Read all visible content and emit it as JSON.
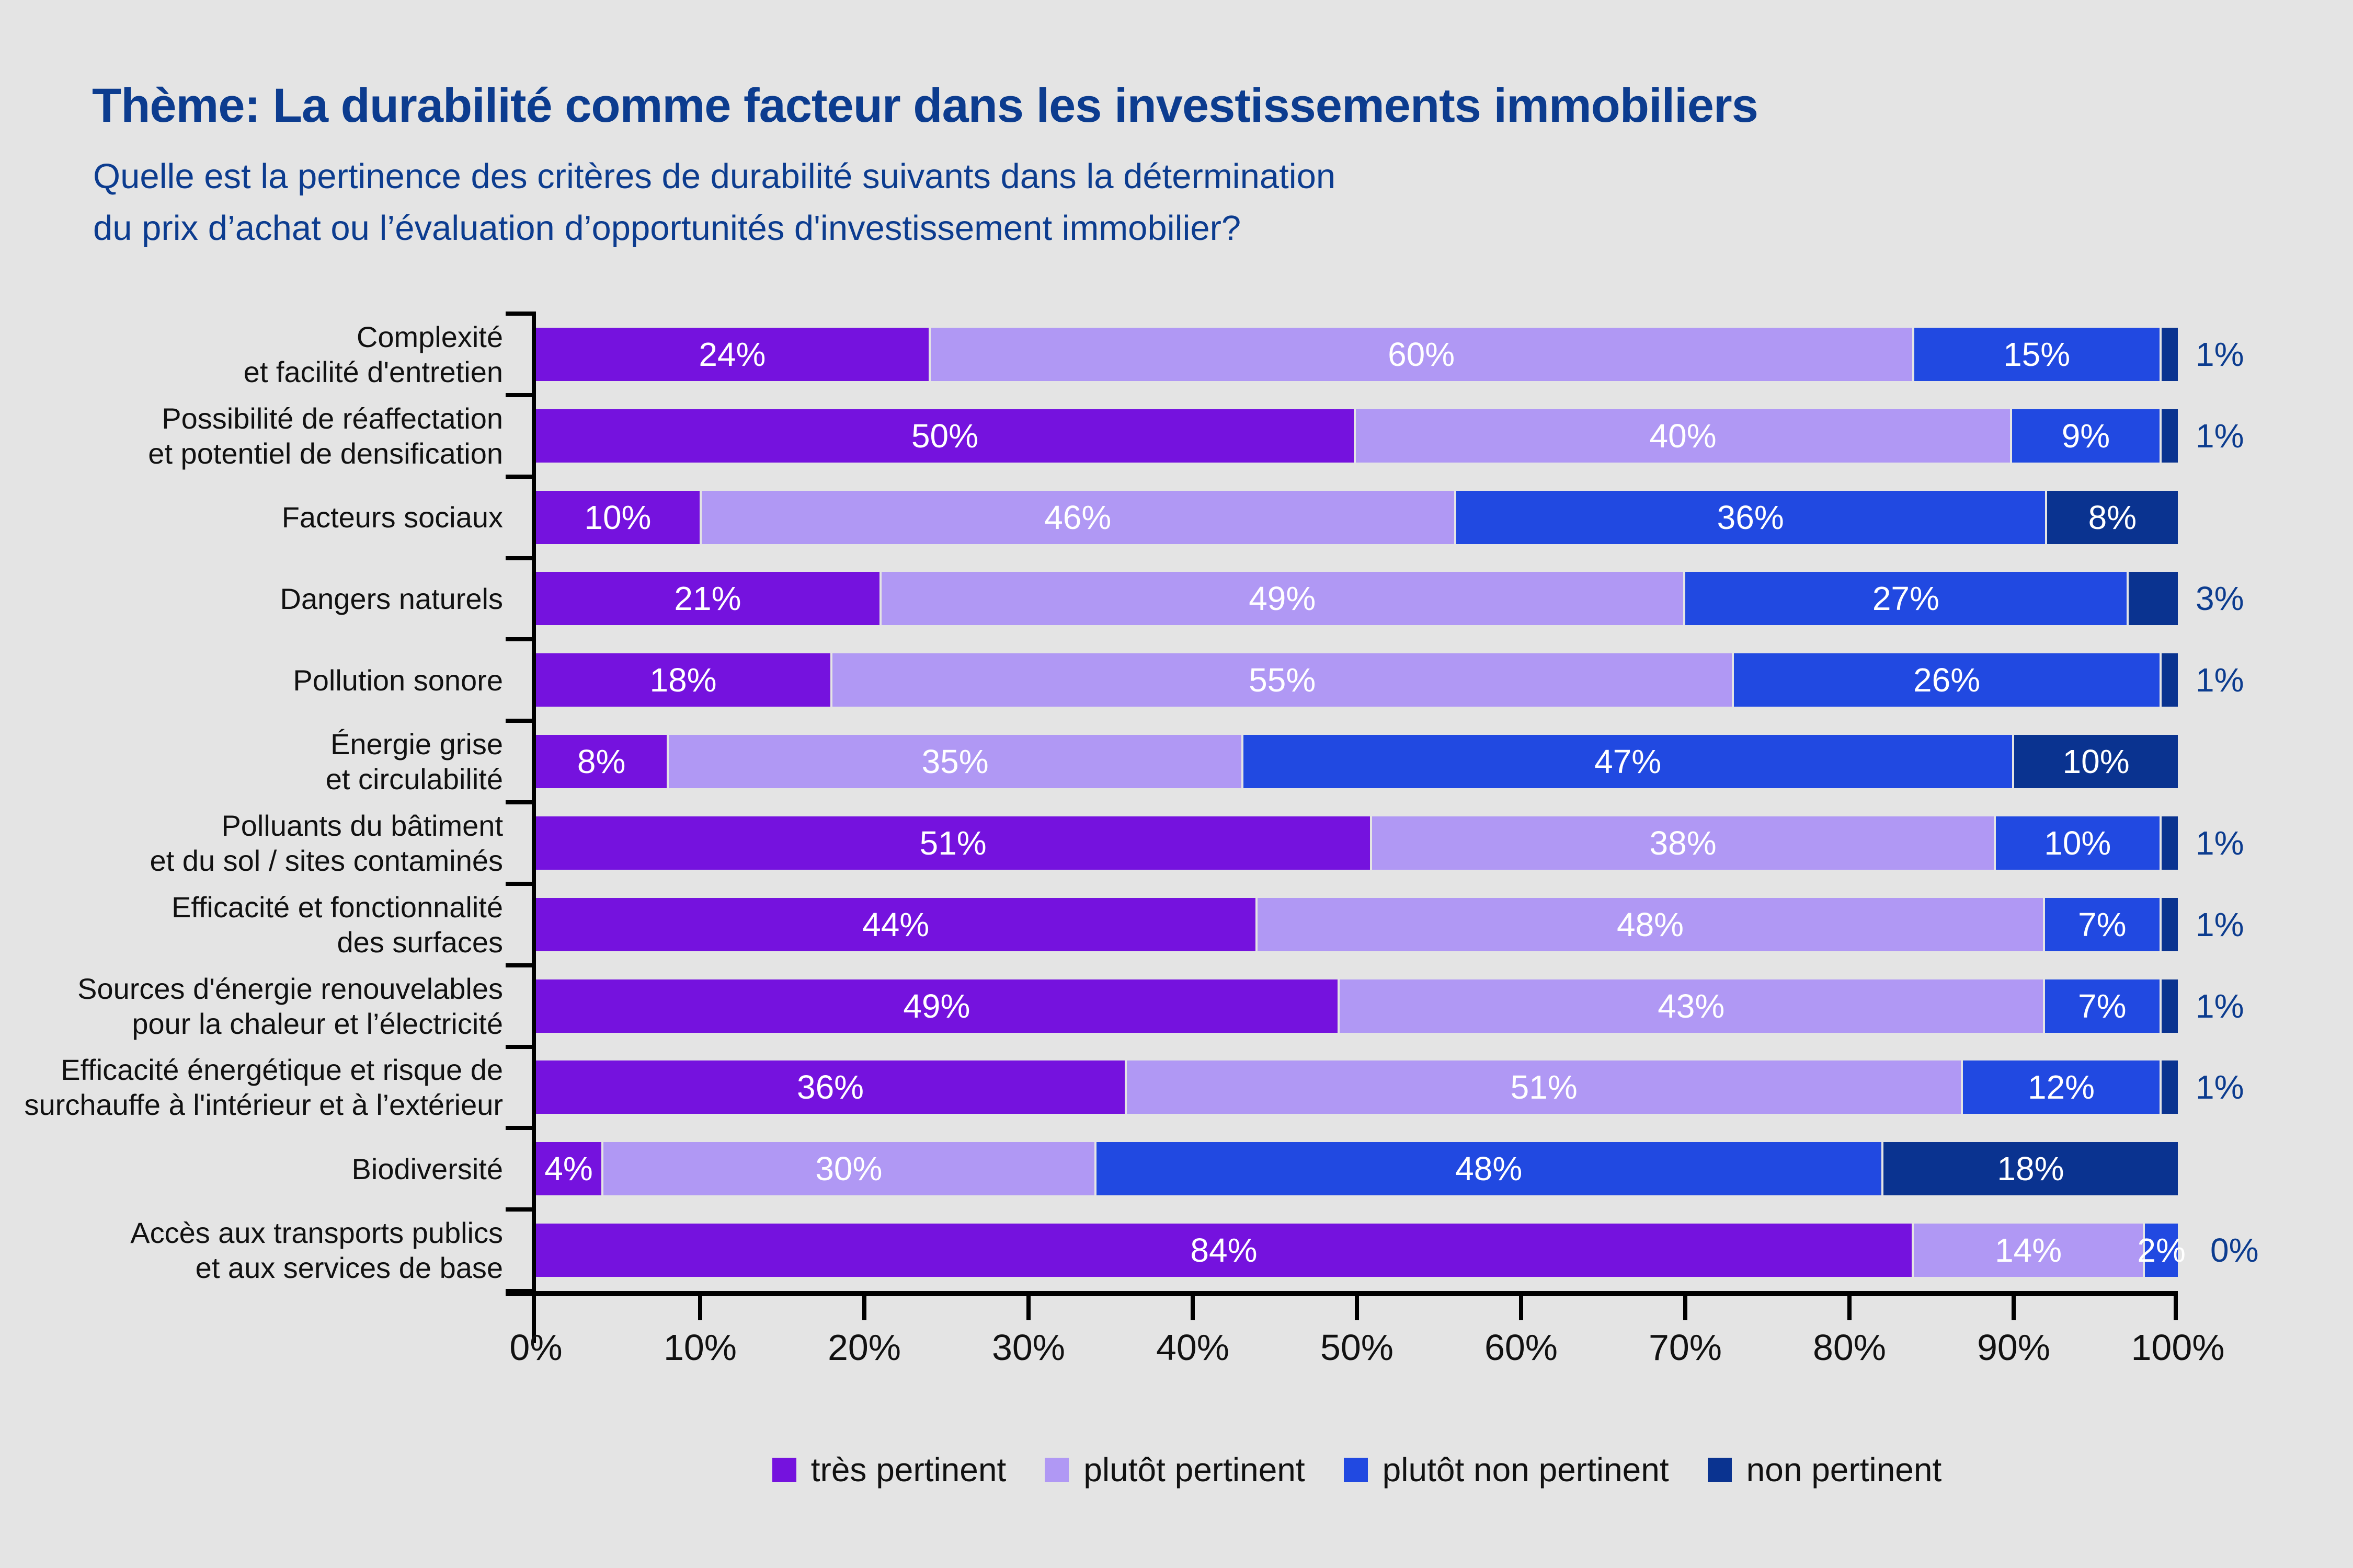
{
  "page": {
    "title": "Thème: La durabilité comme facteur dans les investissements immobiliers",
    "subtitle": [
      "Quelle est la pertinence des critères de durabilité suivants dans la détermination",
      "du prix d’achat ou l’évaluation d’opportunités d'investissement immobilier?"
    ]
  },
  "colors": {
    "background": "#E4E4E4",
    "heading": "#0C3C8F",
    "axis": "#000000",
    "text": "#111111",
    "bar_label": "#FFFFFF",
    "series": [
      "#7512DE",
      "#B098F4",
      "#2149E1",
      "#0A3390"
    ]
  },
  "legend": {
    "items": [
      "très pertinent",
      "plutôt pertinent",
      "plutôt non pertinent",
      "non pertinent"
    ]
  },
  "chart_data": {
    "type": "bar",
    "orientation": "horizontal_stacked",
    "unit": "%",
    "xlim": [
      0,
      100
    ],
    "x_ticks": [
      "0%",
      "10%",
      "20%",
      "30%",
      "40%",
      "50%",
      "60%",
      "70%",
      "80%",
      "90%",
      "100%"
    ],
    "series": [
      "très pertinent",
      "plutôt pertinent",
      "plutôt non pertinent",
      "non pertinent"
    ],
    "categories": [
      [
        "Complexité",
        "et facilité d'entretien"
      ],
      [
        "Possibilité de réaffectation",
        "et potentiel de densification"
      ],
      [
        "Facteurs sociaux"
      ],
      [
        "Dangers naturels"
      ],
      [
        "Pollution sonore"
      ],
      [
        "Énergie grise",
        "et circulabilité"
      ],
      [
        "Polluants du bâtiment",
        "et du sol / sites contaminés"
      ],
      [
        "Efficacité et fonctionnalité",
        "des surfaces"
      ],
      [
        "Sources d'énergie renouvelables",
        "pour la chaleur et l’électricité"
      ],
      [
        "Efficacité énergétique et risque de",
        "surchauffe à l'intérieur et à l’extérieur"
      ],
      [
        "Biodiversité"
      ],
      [
        "Accès aux transports publics",
        "et aux services de base"
      ]
    ],
    "values": [
      [
        24,
        60,
        15,
        1
      ],
      [
        50,
        40,
        9,
        1
      ],
      [
        10,
        46,
        36,
        8
      ],
      [
        21,
        49,
        27,
        3
      ],
      [
        18,
        55,
        26,
        1
      ],
      [
        8,
        35,
        47,
        10
      ],
      [
        51,
        38,
        10,
        1
      ],
      [
        44,
        48,
        7,
        1
      ],
      [
        49,
        43,
        7,
        1
      ],
      [
        36,
        51,
        12,
        1
      ],
      [
        4,
        30,
        48,
        18
      ],
      [
        84,
        14,
        2,
        0
      ]
    ],
    "outside_label_threshold": 3
  }
}
